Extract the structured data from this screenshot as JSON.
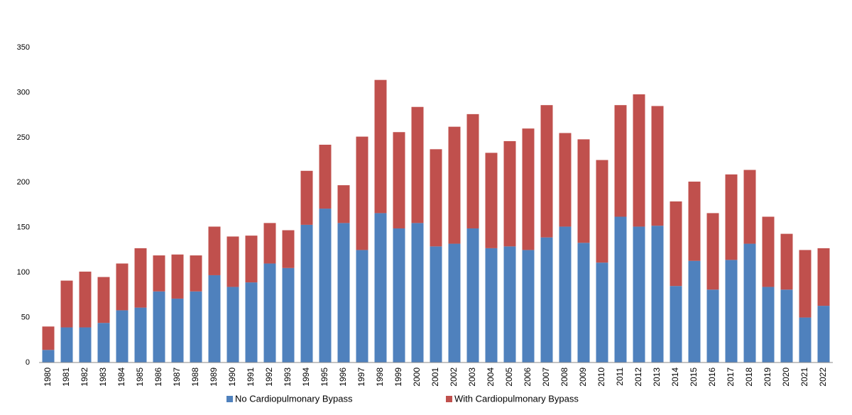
{
  "chart_data": {
    "type": "stacked_bar",
    "categories": [
      "1980",
      "1981",
      "1982",
      "1983",
      "1984",
      "1985",
      "1986",
      "1987",
      "1988",
      "1989",
      "1990",
      "1991",
      "1992",
      "1993",
      "1994",
      "1995",
      "1996",
      "1997",
      "1998",
      "1999",
      "2000",
      "2001",
      "2002",
      "2003",
      "2004",
      "2005",
      "2006",
      "2007",
      "2008",
      "2009",
      "2010",
      "2011",
      "2012",
      "2013",
      "2014",
      "2015",
      "2016",
      "2017",
      "2018",
      "2019",
      "2020",
      "2021",
      "2022"
    ],
    "series": [
      {
        "name": "No Cardiopulmonary Bypass",
        "color": "#4f81bd",
        "values": [
          14,
          39,
          39,
          44,
          58,
          61,
          79,
          71,
          79,
          97,
          84,
          89,
          110,
          105,
          153,
          171,
          155,
          125,
          166,
          149,
          155,
          129,
          132,
          149,
          127,
          129,
          125,
          139,
          151,
          133,
          111,
          162,
          151,
          152,
          85,
          113,
          81,
          114,
          132,
          84,
          81,
          50,
          63
        ]
      },
      {
        "name": "With Cardiopulmonary Bypass",
        "color": "#c0504d",
        "values": [
          26,
          52,
          62,
          51,
          52,
          66,
          40,
          49,
          40,
          54,
          56,
          52,
          45,
          42,
          60,
          71,
          42,
          126,
          148,
          107,
          129,
          108,
          130,
          127,
          106,
          117,
          135,
          147,
          104,
          115,
          114,
          124,
          147,
          133,
          94,
          88,
          85,
          95,
          82,
          78,
          62,
          75,
          64
        ]
      }
    ],
    "ylim": [
      0,
      350
    ],
    "yticks": [
      0,
      50,
      100,
      150,
      200,
      250,
      300,
      350
    ],
    "grid": false,
    "legend": "bottom"
  }
}
